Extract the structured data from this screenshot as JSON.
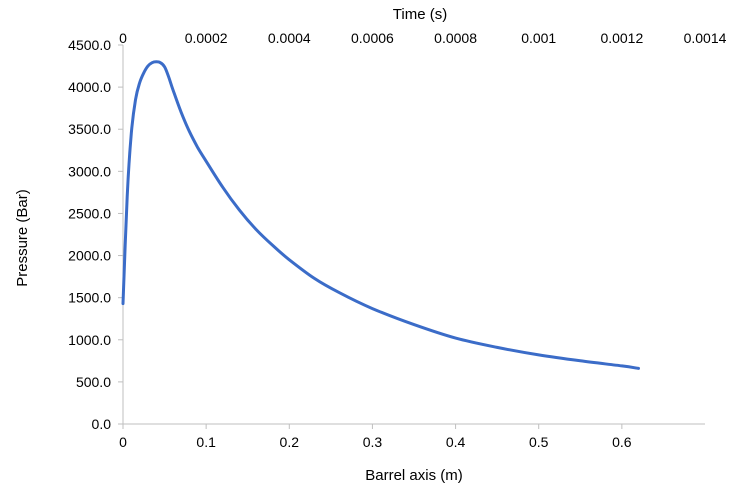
{
  "chart_data": {
    "type": "line",
    "title": "",
    "xlabel": "Barrel axis (m)",
    "ylabel": "Pressure (Bar)",
    "x2label": "Time (s)",
    "xlim": [
      0,
      0.7
    ],
    "ylim": [
      0,
      4500
    ],
    "x2lim": [
      0,
      0.0014
    ],
    "x_ticks": [
      "0",
      "0.1",
      "0.2",
      "0.3",
      "0.4",
      "0.5",
      "0.6"
    ],
    "x_tick_values": [
      0,
      0.1,
      0.2,
      0.3,
      0.4,
      0.5,
      0.6
    ],
    "y_ticks": [
      "0.0",
      "500.0",
      "1000.0",
      "1500.0",
      "2000.0",
      "2500.0",
      "3000.0",
      "3500.0",
      "4000.0",
      "4500.0"
    ],
    "y_tick_values": [
      0,
      500,
      1000,
      1500,
      2000,
      2500,
      3000,
      3500,
      4000,
      4500
    ],
    "x2_ticks": [
      "0",
      "0.0002",
      "0.0004",
      "0.0006",
      "0.0008",
      "0.001",
      "0.0012",
      "0.0014"
    ],
    "x2_tick_values": [
      0,
      0.0002,
      0.0004,
      0.0006,
      0.0008,
      0.001,
      0.0012,
      0.0014
    ],
    "grid": false,
    "legend": "none",
    "line_color": "#3b6cc8",
    "series": [
      {
        "x": [
          0,
          0.005,
          0.01,
          0.015,
          0.02,
          0.025,
          0.03,
          0.035,
          0.04,
          0.045,
          0.05,
          0.055,
          0.06,
          0.07,
          0.08,
          0.09,
          0.1,
          0.12,
          0.14,
          0.16,
          0.18,
          0.2,
          0.23,
          0.26,
          0.3,
          0.35,
          0.4,
          0.45,
          0.5,
          0.55,
          0.6,
          0.62
        ],
        "values": [
          1430,
          2700,
          3450,
          3850,
          4050,
          4170,
          4250,
          4290,
          4300,
          4290,
          4240,
          4120,
          3970,
          3700,
          3470,
          3280,
          3120,
          2810,
          2540,
          2310,
          2120,
          1950,
          1730,
          1560,
          1370,
          1180,
          1020,
          910,
          820,
          750,
          690,
          660
        ]
      }
    ]
  }
}
